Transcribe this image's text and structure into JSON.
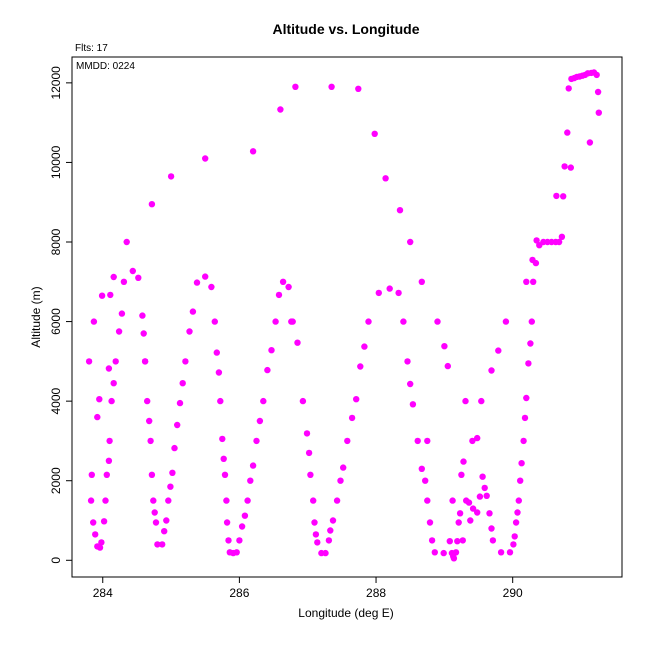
{
  "chart_data": {
    "type": "scatter",
    "title": "Altitude vs. Longitude",
    "annotations": {
      "top_left": "Flts: 17",
      "inside_top_left": "MMDD: 0224"
    },
    "xlabel": "Longitude (deg E)",
    "ylabel": "Altitude (m)",
    "xlim": [
      283.55,
      291.6
    ],
    "ylim": [
      -420,
      12650
    ],
    "x_ticks": [
      284,
      286,
      288,
      290
    ],
    "x_tick_labels": [
      "284",
      "286",
      "288",
      "290"
    ],
    "y_ticks": [
      0,
      2000,
      4000,
      6000,
      8000,
      10000,
      12000
    ],
    "y_tick_labels": [
      "0",
      "2000",
      "4000",
      "6000",
      "8000",
      "10000",
      "12000"
    ],
    "grid": false,
    "marker_color": "#ff00ff",
    "points": [
      [
        283.8,
        5000
      ],
      [
        283.84,
        2150
      ],
      [
        283.83,
        1500
      ],
      [
        283.86,
        950
      ],
      [
        283.89,
        650
      ],
      [
        283.92,
        350
      ],
      [
        283.96,
        320
      ],
      [
        283.98,
        450
      ],
      [
        284.02,
        980
      ],
      [
        284.04,
        1500
      ],
      [
        284.06,
        2150
      ],
      [
        284.09,
        2500
      ],
      [
        284.1,
        3000
      ],
      [
        284.13,
        4000
      ],
      [
        284.16,
        4450
      ],
      [
        284.19,
        5000
      ],
      [
        284.24,
        5750
      ],
      [
        284.28,
        6200
      ],
      [
        284.31,
        7000
      ],
      [
        284.35,
        8000
      ],
      [
        284.44,
        7270
      ],
      [
        284.52,
        7100
      ],
      [
        284.58,
        6150
      ],
      [
        284.6,
        5700
      ],
      [
        284.62,
        5000
      ],
      [
        284.65,
        4000
      ],
      [
        284.68,
        3500
      ],
      [
        284.7,
        3000
      ],
      [
        284.72,
        2150
      ],
      [
        284.74,
        1500
      ],
      [
        284.76,
        1200
      ],
      [
        284.78,
        950
      ],
      [
        284.8,
        400
      ],
      [
        284.87,
        400
      ],
      [
        284.9,
        730
      ],
      [
        284.93,
        1000
      ],
      [
        284.96,
        1500
      ],
      [
        284.99,
        1850
      ],
      [
        285.02,
        2200
      ],
      [
        285.05,
        2820
      ],
      [
        285.09,
        3400
      ],
      [
        285.13,
        3950
      ],
      [
        285.17,
        4450
      ],
      [
        285.21,
        5000
      ],
      [
        285.27,
        5750
      ],
      [
        285.32,
        6250
      ],
      [
        285.38,
        6980
      ],
      [
        285.5,
        7130
      ],
      [
        285.59,
        6870
      ],
      [
        285.64,
        6000
      ],
      [
        285.67,
        5220
      ],
      [
        285.7,
        4720
      ],
      [
        285.72,
        4000
      ],
      [
        285.75,
        3050
      ],
      [
        285.77,
        2550
      ],
      [
        285.79,
        2150
      ],
      [
        285.81,
        1500
      ],
      [
        285.82,
        950
      ],
      [
        285.84,
        500
      ],
      [
        285.86,
        200
      ],
      [
        285.91,
        180
      ],
      [
        285.96,
        200
      ],
      [
        286.0,
        500
      ],
      [
        286.04,
        850
      ],
      [
        286.08,
        1120
      ],
      [
        286.12,
        1500
      ],
      [
        286.16,
        2000
      ],
      [
        286.2,
        2380
      ],
      [
        286.25,
        3000
      ],
      [
        286.3,
        3500
      ],
      [
        286.35,
        4000
      ],
      [
        286.41,
        4780
      ],
      [
        286.47,
        5280
      ],
      [
        286.53,
        6000
      ],
      [
        286.58,
        6670
      ],
      [
        286.64,
        7000
      ],
      [
        286.72,
        6870
      ],
      [
        286.78,
        6000
      ],
      [
        286.85,
        5470
      ],
      [
        286.93,
        4000
      ],
      [
        286.99,
        3190
      ],
      [
        287.02,
        2700
      ],
      [
        287.04,
        2150
      ],
      [
        287.08,
        1500
      ],
      [
        287.1,
        950
      ],
      [
        287.12,
        650
      ],
      [
        287.14,
        450
      ],
      [
        287.2,
        180
      ],
      [
        287.26,
        180
      ],
      [
        287.31,
        500
      ],
      [
        287.33,
        750
      ],
      [
        287.37,
        1000
      ],
      [
        287.43,
        1500
      ],
      [
        287.48,
        2000
      ],
      [
        287.52,
        2330
      ],
      [
        287.58,
        3000
      ],
      [
        287.65,
        3580
      ],
      [
        287.71,
        4050
      ],
      [
        287.77,
        4870
      ],
      [
        287.83,
        5370
      ],
      [
        287.89,
        6000
      ],
      [
        288.04,
        6720
      ],
      [
        288.2,
        6830
      ],
      [
        288.33,
        6720
      ],
      [
        288.4,
        6000
      ],
      [
        288.46,
        5000
      ],
      [
        288.5,
        4430
      ],
      [
        288.54,
        3920
      ],
      [
        288.61,
        3000
      ],
      [
        288.67,
        2300
      ],
      [
        288.72,
        2000
      ],
      [
        288.75,
        1500
      ],
      [
        288.79,
        950
      ],
      [
        288.82,
        500
      ],
      [
        288.86,
        200
      ],
      [
        288.99,
        180
      ],
      [
        289.08,
        480
      ],
      [
        289.11,
        180
      ],
      [
        289.14,
        50
      ],
      [
        289.17,
        200
      ],
      [
        289.19,
        480
      ],
      [
        289.21,
        950
      ],
      [
        289.23,
        1180
      ],
      [
        289.25,
        2150
      ],
      [
        289.28,
        2480
      ],
      [
        289.32,
        1500
      ],
      [
        289.38,
        1000
      ],
      [
        289.42,
        1300
      ],
      [
        289.48,
        1200
      ],
      [
        289.52,
        1600
      ],
      [
        289.56,
        2100
      ],
      [
        289.59,
        1820
      ],
      [
        289.62,
        1620
      ],
      [
        289.66,
        1180
      ],
      [
        289.69,
        800
      ],
      [
        289.71,
        500
      ],
      [
        289.83,
        200
      ],
      [
        289.96,
        200
      ],
      [
        290.01,
        400
      ],
      [
        290.03,
        600
      ],
      [
        290.05,
        950
      ],
      [
        290.07,
        1200
      ],
      [
        290.09,
        1500
      ],
      [
        290.11,
        2000
      ],
      [
        290.13,
        2440
      ],
      [
        290.16,
        3000
      ],
      [
        290.18,
        3580
      ],
      [
        290.2,
        4080
      ],
      [
        290.23,
        4950
      ],
      [
        290.26,
        5450
      ],
      [
        290.28,
        6000
      ],
      [
        290.3,
        7000
      ],
      [
        290.34,
        7470
      ],
      [
        290.29,
        7550
      ],
      [
        290.35,
        8040
      ],
      [
        290.39,
        7920
      ],
      [
        290.45,
        8000
      ],
      [
        290.51,
        8000
      ],
      [
        290.57,
        8000
      ],
      [
        290.63,
        8000
      ],
      [
        290.68,
        8000
      ],
      [
        290.72,
        8130
      ],
      [
        290.76,
        9900
      ],
      [
        290.8,
        10750
      ],
      [
        290.85,
        9870
      ],
      [
        290.82,
        11860
      ],
      [
        290.86,
        12100
      ],
      [
        290.9,
        12120
      ],
      [
        290.94,
        12150
      ],
      [
        290.98,
        12160
      ],
      [
        291.02,
        12180
      ],
      [
        291.06,
        12200
      ],
      [
        291.1,
        12240
      ],
      [
        291.15,
        12250
      ],
      [
        291.19,
        12260
      ],
      [
        291.23,
        12200
      ],
      [
        291.25,
        11770
      ],
      [
        291.26,
        11250
      ],
      [
        291.13,
        10500
      ],
      [
        284.72,
        8950
      ],
      [
        285.0,
        9650
      ],
      [
        285.5,
        10100
      ],
      [
        286.2,
        10280
      ],
      [
        286.6,
        11330
      ],
      [
        286.82,
        11900
      ],
      [
        287.35,
        11900
      ],
      [
        287.74,
        11850
      ],
      [
        287.98,
        10720
      ],
      [
        288.14,
        9600
      ],
      [
        288.35,
        8800
      ],
      [
        288.5,
        8000
      ],
      [
        288.67,
        7000
      ],
      [
        289.05,
        4880
      ],
      [
        289.31,
        4000
      ],
      [
        289.48,
        3070
      ],
      [
        289.41,
        3000
      ],
      [
        289.54,
        4000
      ],
      [
        289.69,
        4770
      ],
      [
        289.79,
        5270
      ],
      [
        289.9,
        6000
      ],
      [
        290.2,
        7000
      ],
      [
        290.64,
        9160
      ],
      [
        290.74,
        9150
      ],
      [
        288.9,
        6000
      ],
      [
        289.0,
        5380
      ],
      [
        289.36,
        1450
      ],
      [
        289.12,
        1500
      ],
      [
        289.27,
        500
      ],
      [
        283.99,
        6650
      ],
      [
        284.16,
        7120
      ],
      [
        283.87,
        6000
      ],
      [
        283.92,
        3600
      ],
      [
        284.11,
        6670
      ],
      [
        283.95,
        4050
      ],
      [
        284.62,
        5000
      ],
      [
        284.09,
        4820
      ],
      [
        286.76,
        6000
      ],
      [
        288.75,
        3000
      ],
      [
        289.13,
        100
      ]
    ]
  }
}
